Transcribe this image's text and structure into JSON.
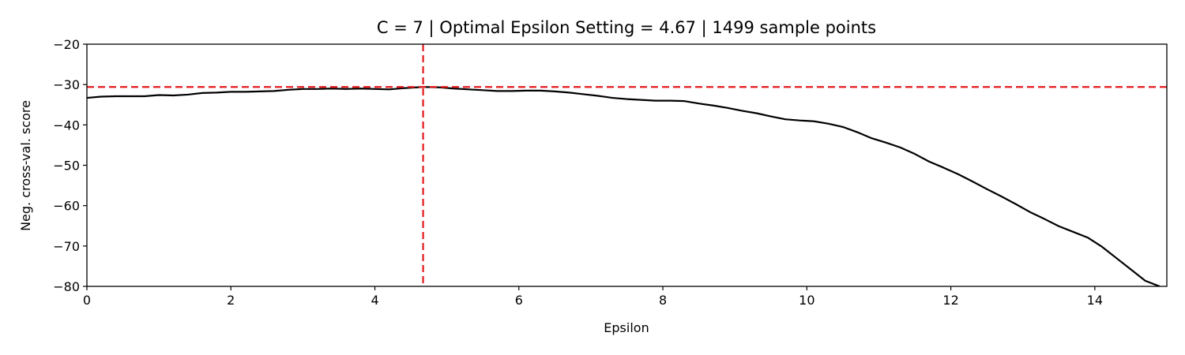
{
  "chart_data": {
    "type": "line",
    "title": "C = 7 | Optimal Epsilon Setting = 4.67 | 1499 sample points",
    "xlabel": "Epsilon",
    "ylabel": "Neg. cross-val. score",
    "xlim": [
      0,
      15
    ],
    "ylim": [
      -80,
      -20
    ],
    "x_ticks": [
      0,
      2,
      4,
      6,
      8,
      10,
      12,
      14
    ],
    "y_ticks": [
      -20,
      -30,
      -40,
      -50,
      -60,
      -70,
      -80
    ],
    "x_tick_labels": [
      "0",
      "2",
      "4",
      "6",
      "8",
      "10",
      "12",
      "14"
    ],
    "y_tick_labels": [
      "−20",
      "−30",
      "−40",
      "−50",
      "−60",
      "−70",
      "−80"
    ],
    "grid": false,
    "series": [
      {
        "color": "#000000",
        "x": [
          0,
          0.2,
          0.4,
          0.6,
          0.8,
          1.0,
          1.2,
          1.4,
          1.6,
          1.8,
          2.0,
          2.2,
          2.4,
          2.6,
          2.8,
          3.0,
          3.2,
          3.4,
          3.6,
          3.8,
          4.0,
          4.2,
          4.4,
          4.67,
          4.9,
          5.1,
          5.3,
          5.5,
          5.7,
          5.9,
          6.1,
          6.3,
          6.5,
          6.7,
          6.9,
          7.1,
          7.3,
          7.5,
          7.7,
          7.9,
          8.1,
          8.3,
          8.5,
          8.7,
          8.9,
          9.1,
          9.3,
          9.5,
          9.7,
          9.9,
          10.1,
          10.3,
          10.5,
          10.7,
          10.9,
          11.1,
          11.3,
          11.5,
          11.7,
          11.9,
          12.1,
          12.3,
          12.5,
          12.7,
          12.9,
          13.1,
          13.3,
          13.5,
          13.7,
          13.9,
          14.1,
          14.3,
          14.5,
          14.7,
          14.9
        ],
        "y": [
          -33.3,
          -33.0,
          -32.9,
          -32.9,
          -32.9,
          -32.6,
          -32.7,
          -32.5,
          -32.1,
          -32.0,
          -31.8,
          -31.8,
          -31.7,
          -31.6,
          -31.3,
          -31.1,
          -31.1,
          -31.0,
          -31.1,
          -31.0,
          -31.1,
          -31.2,
          -30.9,
          -30.6,
          -30.7,
          -31.0,
          -31.2,
          -31.4,
          -31.6,
          -31.6,
          -31.5,
          -31.5,
          -31.7,
          -32.0,
          -32.4,
          -32.8,
          -33.3,
          -33.6,
          -33.8,
          -34.0,
          -34.0,
          -34.1,
          -34.7,
          -35.2,
          -35.8,
          -36.5,
          -37.1,
          -37.9,
          -38.6,
          -38.9,
          -39.1,
          -39.7,
          -40.5,
          -41.8,
          -43.3,
          -44.4,
          -45.6,
          -47.2,
          -49.1,
          -50.6,
          -52.2,
          -54.0,
          -55.9,
          -57.7,
          -59.6,
          -61.6,
          -63.3,
          -65.1,
          -66.5,
          -67.9,
          -70.2,
          -73.0,
          -75.8,
          -78.6,
          -80.0
        ]
      }
    ],
    "reference_lines": [
      {
        "orientation": "vertical",
        "x": 4.67,
        "color": "#e31a1c",
        "style": "dashed"
      },
      {
        "orientation": "horizontal",
        "y": -30.6,
        "color": "#e31a1c",
        "style": "dashed"
      }
    ]
  }
}
